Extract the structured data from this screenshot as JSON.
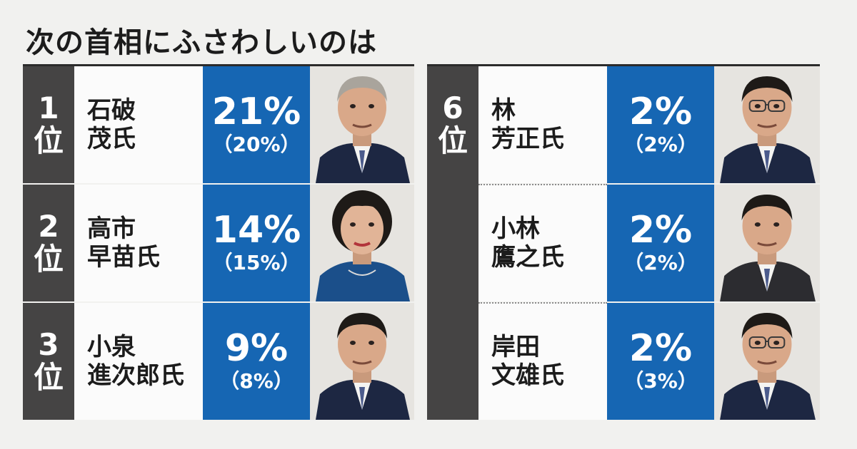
{
  "title": "次の首相にふさわしいのは",
  "colors": {
    "rank_bg": "#454444",
    "percent_bg": "#1666b3",
    "name_bg": "#fbfbfb",
    "page_bg": "#f1f1ef",
    "text": "#1c1c1c"
  },
  "chart_data": {
    "type": "table",
    "title": "次の首相にふさわしいのは",
    "columns": [
      [
        {
          "rank": "1",
          "rank_suffix": "位",
          "name": "石破\n茂氏",
          "percent": "21%",
          "previous": "（20%）",
          "value": 21,
          "previous_value": 20,
          "photo": "man-gray-hair-portrait"
        },
        {
          "rank": "2",
          "rank_suffix": "位",
          "name": "高市\n早苗氏",
          "percent": "14%",
          "previous": "（15%）",
          "value": 14,
          "previous_value": 15,
          "photo": "woman-short-hair-portrait"
        },
        {
          "rank": "3",
          "rank_suffix": "位",
          "name": "小泉\n進次郎氏",
          "percent": "9%",
          "previous": "（8%）",
          "value": 9,
          "previous_value": 8,
          "photo": "man-dark-hair-portrait"
        }
      ],
      [
        {
          "rank": "6",
          "rank_suffix": "位",
          "name": "林\n芳正氏",
          "percent": "2%",
          "previous": "（2%）",
          "value": 2,
          "previous_value": 2,
          "photo": "man-glasses-portrait"
        },
        {
          "rank": "",
          "rank_suffix": "",
          "name": "小林\n鷹之氏",
          "percent": "2%",
          "previous": "（2%）",
          "value": 2,
          "previous_value": 2,
          "photo": "man-speaking-portrait"
        },
        {
          "rank": "",
          "rank_suffix": "",
          "name": "岸田\n文雄氏",
          "percent": "2%",
          "previous": "（3%）",
          "value": 2,
          "previous_value": 3,
          "photo": "man-glasses-suit-portrait"
        }
      ]
    ]
  }
}
